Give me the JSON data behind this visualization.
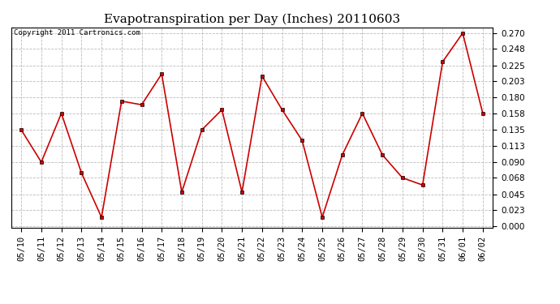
{
  "title": "Evapotranspiration per Day (Inches) 20110603",
  "copyright": "Copyright 2011 Cartronics.com",
  "x_labels": [
    "05/10",
    "05/11",
    "05/12",
    "05/13",
    "05/14",
    "05/15",
    "05/16",
    "05/17",
    "05/18",
    "05/19",
    "05/20",
    "05/21",
    "05/22",
    "05/23",
    "05/24",
    "05/25",
    "05/26",
    "05/27",
    "05/28",
    "05/29",
    "05/30",
    "05/31",
    "06/01",
    "06/02"
  ],
  "y_values": [
    0.135,
    0.09,
    0.158,
    0.075,
    0.013,
    0.175,
    0.17,
    0.213,
    0.048,
    0.135,
    0.163,
    0.048,
    0.21,
    0.163,
    0.12,
    0.013,
    0.1,
    0.158,
    0.1,
    0.068,
    0.058,
    0.23,
    0.27,
    0.158
  ],
  "y_min": 0.0,
  "y_max": 0.27,
  "y_ticks": [
    0.0,
    0.023,
    0.045,
    0.068,
    0.09,
    0.113,
    0.135,
    0.158,
    0.18,
    0.203,
    0.225,
    0.248,
    0.27
  ],
  "line_color": "#cc0000",
  "marker_color": "#cc0000",
  "bg_color": "#ffffff",
  "grid_color": "#bbbbbb",
  "title_fontsize": 11,
  "copyright_fontsize": 6.5,
  "tick_fontsize": 7.5
}
